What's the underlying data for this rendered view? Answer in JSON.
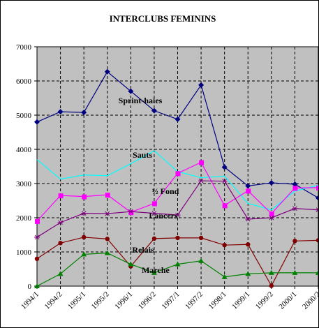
{
  "chart_data": {
    "type": "line",
    "title": "INTERCLUBS FEMININS",
    "xlabel": "",
    "ylabel": "",
    "ylim": [
      0,
      7000
    ],
    "yticks": [
      "0",
      "1000",
      "2000",
      "3000",
      "4000",
      "5000",
      "6000",
      "7000"
    ],
    "categories": [
      "1994/1",
      "1994/2",
      "1995/1",
      "1995/2",
      "1996/1",
      "1996/2",
      "1997/1",
      "1997/2",
      "1998/1",
      "1999/1",
      "1999/2",
      "2000/1",
      "2000/2"
    ],
    "grid": true,
    "plot_background": "#c0c0c0",
    "legend": "none (series labelled directly on the plot)",
    "series": [
      {
        "name": "Sprint-haies",
        "color": "#000080",
        "marker": "diamond",
        "values": [
          4800,
          5100,
          5080,
          6270,
          5700,
          5130,
          4880,
          5880,
          3480,
          2930,
          3020,
          2980,
          2580
        ]
      },
      {
        "name": "Sauts",
        "color": "#00ffff",
        "marker": "none",
        "values": [
          3700,
          3130,
          3250,
          3230,
          3580,
          3960,
          3350,
          3170,
          3220,
          2420,
          2230,
          2780,
          2950
        ]
      },
      {
        "name": "½ Fond",
        "color": "#ff00ff",
        "marker": "square",
        "values": [
          1900,
          2650,
          2620,
          2670,
          2160,
          2420,
          3300,
          3620,
          2360,
          2790,
          2120,
          2870,
          2880
        ]
      },
      {
        "name": "Lancers",
        "color": "#800080",
        "marker": "asterisk",
        "values": [
          1430,
          1860,
          2130,
          2120,
          2180,
          2130,
          2080,
          3080,
          3070,
          1960,
          2000,
          2270,
          2230
        ]
      },
      {
        "name": "Relais",
        "color": "#800000",
        "marker": "circle",
        "values": [
          800,
          1260,
          1430,
          1380,
          580,
          1390,
          1410,
          1410,
          1200,
          1220,
          10,
          1320,
          1340
        ]
      },
      {
        "name": "Marche",
        "color": "#008000",
        "marker": "triangle",
        "values": [
          0,
          360,
          930,
          970,
          640,
          390,
          640,
          740,
          270,
          360,
          390,
          390,
          390
        ]
      }
    ]
  }
}
